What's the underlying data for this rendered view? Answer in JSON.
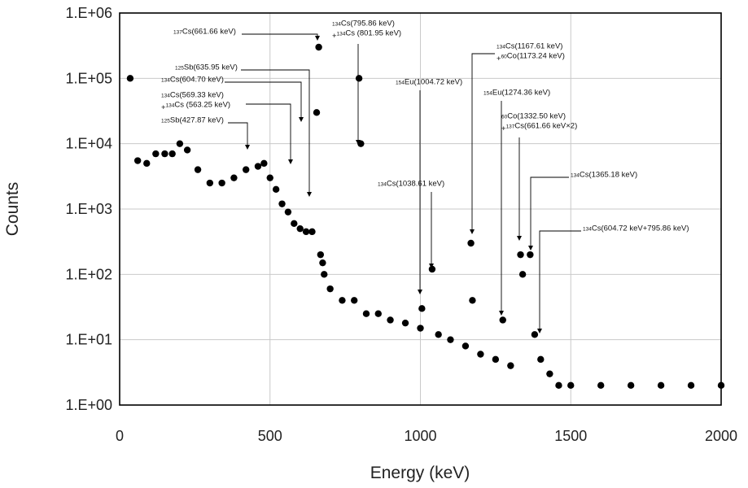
{
  "chart_data": {
    "type": "scatter",
    "title": "",
    "xlabel": "Energy (keV)",
    "ylabel": "Counts",
    "xlim": [
      0,
      2000
    ],
    "ylim": [
      1,
      1000000
    ],
    "y_scale": "log",
    "x_ticks": [
      "0",
      "500",
      "1000",
      "1500",
      "2000"
    ],
    "y_ticks": [
      "1.E+00",
      "1.E+01",
      "1.E+02",
      "1.E+03",
      "1.E+04",
      "1.E+05",
      "1.E+06"
    ],
    "grid": true,
    "legend": "none",
    "marker_color": "#000000",
    "series": [
      {
        "x": [
          35,
          60,
          90,
          120,
          150,
          175,
          200,
          225,
          260,
          300,
          340,
          380,
          420,
          460,
          480,
          500,
          520,
          540,
          560,
          580,
          600,
          620,
          640,
          655,
          662,
          668,
          675,
          680,
          700,
          740,
          780,
          796,
          802,
          820,
          860,
          900,
          950,
          1000,
          1005,
          1039,
          1060,
          1100,
          1150,
          1168,
          1173,
          1200,
          1250,
          1274,
          1300,
          1333,
          1340,
          1365,
          1380,
          1400,
          1430,
          1460,
          1500,
          1600,
          1700,
          1800,
          1900,
          2000
        ],
        "y": [
          100000,
          5500,
          5000,
          7000,
          7000,
          7000,
          10000,
          8000,
          4000,
          2500,
          2500,
          3000,
          4000,
          4500,
          5000,
          3000,
          2000,
          1200,
          900,
          600,
          500,
          450,
          450,
          30000,
          300000,
          200,
          150,
          100,
          60,
          40,
          40,
          100000,
          10000,
          25,
          25,
          20,
          18,
          15,
          30,
          120,
          12,
          10,
          8,
          300,
          40,
          6,
          5,
          20,
          4,
          200,
          100,
          200,
          12,
          5,
          3,
          2,
          2,
          2,
          2,
          2,
          2,
          2
        ]
      }
    ],
    "annotations": [
      {
        "iso_mass": "137",
        "element": "Cs",
        "text": "(661.66 keV)"
      },
      {
        "iso_mass": "134",
        "element": "Cs",
        "text": "(795.86 keV)",
        "line2_prefix": "+",
        "line2_mass": "134",
        "line2_element": "Cs",
        "line2_text": " (801.95 keV)"
      },
      {
        "iso_mass": "125",
        "element": "Sb",
        "text": "(635.95 keV)"
      },
      {
        "iso_mass": "134",
        "element": "Cs",
        "text": "(604.70 keV)"
      },
      {
        "iso_mass": "134",
        "element": "Cs",
        "text": "(569.33 keV)",
        "line2_prefix": "+",
        "line2_mass": "134",
        "line2_element": "Cs",
        "line2_text": " (563.25 keV)"
      },
      {
        "iso_mass": "125",
        "element": "Sb",
        "text": "(427.87 keV)"
      },
      {
        "iso_mass": "154",
        "element": "Eu",
        "text": "(1004.72 keV)"
      },
      {
        "iso_mass": "134",
        "element": "Cs",
        "text": "(1038.61 keV)"
      },
      {
        "iso_mass": "134",
        "element": "Cs",
        "text": "(1167.61 keV)",
        "line2_prefix": "+",
        "line2_mass": "60",
        "line2_element": "Co",
        "line2_text": "(1173.24 keV)"
      },
      {
        "iso_mass": "154",
        "element": "Eu",
        "text": "(1274.36 keV)"
      },
      {
        "iso_mass": "60",
        "element": "Co",
        "text": "(1332.50 keV)",
        "line2_prefix": "+",
        "line2_mass": "137",
        "line2_element": "Cs",
        "line2_text": "(661.66 keV×2)"
      },
      {
        "iso_mass": "134",
        "element": "Cs",
        "text": "(1365.18 keV)"
      },
      {
        "iso_mass": "134",
        "element": "Cs",
        "text": "(604.72 keV+795.86 keV)"
      }
    ]
  }
}
